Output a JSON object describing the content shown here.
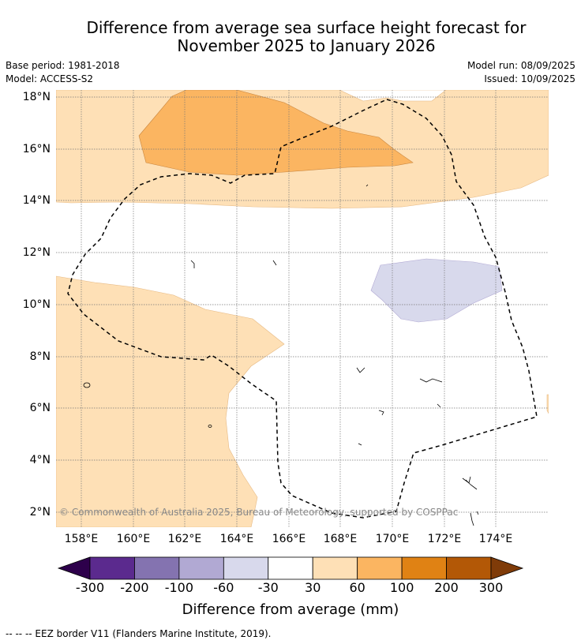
{
  "title_line1": "Difference from average sea surface height forecast for",
  "title_line2": "November 2025 to January 2026",
  "base_period": "Base period: 1981-2018",
  "model": "Model: ACCESS-S2",
  "model_run": "Model run: 08/09/2025",
  "issued": "Issued: 10/09/2025",
  "copyright": "© Commonwealth of Australia 2025, Bureau of Meteorology, supported by COSPPac",
  "lat_labels": [
    "18°N",
    "16°N",
    "14°N",
    "12°N",
    "10°N",
    "8°N",
    "6°N",
    "4°N",
    "2°N"
  ],
  "lon_labels": [
    "158°E",
    "160°E",
    "162°E",
    "164°E",
    "166°E",
    "168°E",
    "170°E",
    "172°E",
    "174°E"
  ],
  "colorbar": {
    "title": "Difference from average (mm)",
    "tick_labels": [
      "-300",
      "-200",
      "-100",
      "-60",
      "-30",
      "30",
      "60",
      "100",
      "200",
      "300"
    ],
    "colors": [
      "#2d004b",
      "#5b2a8e",
      "#8473b0",
      "#b1a9d3",
      "#d8d9ec",
      "#ffffff",
      "#fee0b6",
      "#fbb561",
      "#e08214",
      "#b35806",
      "#7f3b08"
    ]
  },
  "footer": "-- -- -- EEZ border V11 (Flanders Marine Institute, 2019)."
}
